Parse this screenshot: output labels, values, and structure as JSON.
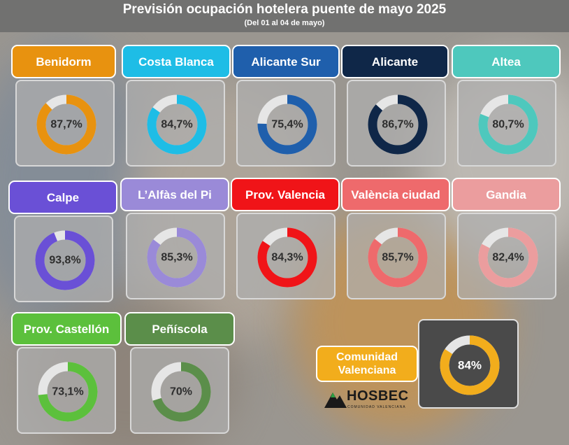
{
  "header": {
    "title": "Previsión ocupación hotelera puente de mayo 2025",
    "subtitle": "(Del 01 al 04 de mayo)"
  },
  "logo": {
    "brand": "HOSBEC",
    "tagline": "COMUNIDAD VALENCIANA"
  },
  "chart_data": {
    "type": "donut",
    "title": "Previsión ocupación hotelera puente de mayo 2025",
    "subtitle": "(Del 01 al 04 de mayo)",
    "unit": "%",
    "track_color": "#e6e6e6",
    "items": [
      {
        "name": "Benidorm",
        "value": 87.7,
        "display": "87,7%",
        "color": "#e8920f"
      },
      {
        "name": "Costa Blanca",
        "value": 84.7,
        "display": "84,7%",
        "color": "#1ebde6"
      },
      {
        "name": "Alicante Sur",
        "value": 75.4,
        "display": "75,4%",
        "color": "#1f5fac"
      },
      {
        "name": "Alicante",
        "value": 86.7,
        "display": "86,7%",
        "color": "#0f2748"
      },
      {
        "name": "Altea",
        "value": 80.7,
        "display": "80,7%",
        "color": "#4ec8bd"
      },
      {
        "name": "Calpe",
        "value": 93.8,
        "display": "93,8%",
        "color": "#6a50d6"
      },
      {
        "name": "L’Alfàs del Pi",
        "value": 85.3,
        "display": "85,3%",
        "color": "#9a8ad8"
      },
      {
        "name": "Prov. Valencia",
        "value": 84.3,
        "display": "84,3%",
        "color": "#f01418"
      },
      {
        "name": "València ciudad",
        "value": 85.7,
        "display": "85,7%",
        "color": "#ee6a6c"
      },
      {
        "name": "Gandia",
        "value": 82.4,
        "display": "82,4%",
        "color": "#eb9d9e"
      },
      {
        "name": "Prov. Castellón",
        "value": 73.1,
        "display": "73,1%",
        "color": "#5cc03c"
      },
      {
        "name": "Peñíscola",
        "value": 70,
        "display": "70%",
        "color": "#5b8e4a"
      },
      {
        "name": "Comunidad Valenciana",
        "value": 84,
        "display": "84%",
        "color": "#f2ad1c"
      }
    ]
  }
}
